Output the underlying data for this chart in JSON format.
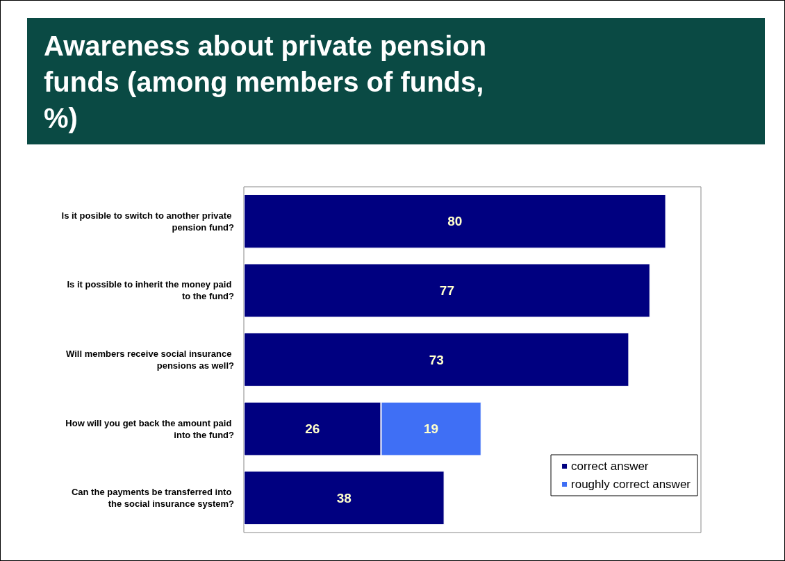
{
  "chart_data": {
    "type": "bar",
    "orientation": "horizontal",
    "stacked": true,
    "data_labels": true,
    "legend": "bottom right",
    "grid": false,
    "title": "Awareness about private pension funds (among members of funds, %)",
    "categories": [
      "Is it posible to switch to another private pension fund?",
      "Is it possible to inherit the money paid to the fund?",
      "Will members receive social insurance pensions as well?",
      "How will you get back the amount paid into the fund?",
      "Can the payments be transferred into the social insurance system?"
    ],
    "series": [
      {
        "name": "correct answer",
        "color": "#000080",
        "values": [
          80,
          77,
          73,
          26,
          38
        ]
      },
      {
        "name": "roughly correct answer",
        "color": "#3f6ff5",
        "values": [
          null,
          null,
          null,
          19,
          null
        ]
      }
    ]
  }
}
